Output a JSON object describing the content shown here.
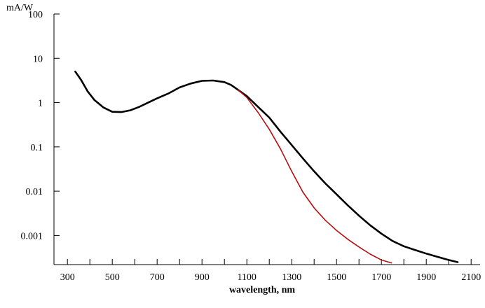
{
  "chart_data": {
    "type": "line",
    "title": "",
    "ylabel": "mA/W",
    "xlabel": "wavelength, nm",
    "y_scale": "log",
    "grid": false,
    "legend": "none",
    "xlim": [
      240,
      2140
    ],
    "ylim": [
      0.00022,
      100
    ],
    "x_ticks": [
      300,
      500,
      700,
      900,
      1100,
      1300,
      1500,
      1700,
      1900,
      2100
    ],
    "x_tick_labels": [
      "300",
      "500",
      "700",
      "900",
      "1100",
      "1300",
      "1500",
      "1700",
      "1900",
      "2100"
    ],
    "y_ticks": [
      100,
      10,
      1,
      0.1,
      0.01,
      0.001
    ],
    "y_tick_labels": [
      "100",
      "10",
      "1",
      "0.1",
      "0.01",
      "0.001"
    ],
    "series": [
      {
        "color": "#000000",
        "x": [
          335,
          360,
          390,
          420,
          460,
          500,
          540,
          580,
          620,
          660,
          700,
          750,
          800,
          850,
          900,
          950,
          1000,
          1030,
          1060,
          1100,
          1150,
          1200,
          1250,
          1300,
          1350,
          1400,
          1450,
          1500,
          1550,
          1600,
          1650,
          1700,
          1750,
          1800,
          1850,
          1900,
          1950,
          2000,
          2040
        ],
        "y": [
          5.0,
          3.3,
          1.8,
          1.15,
          0.78,
          0.62,
          0.61,
          0.67,
          0.8,
          1.0,
          1.25,
          1.6,
          2.2,
          2.7,
          3.1,
          3.15,
          2.9,
          2.5,
          1.95,
          1.4,
          0.8,
          0.46,
          0.22,
          0.11,
          0.055,
          0.028,
          0.015,
          0.0085,
          0.0048,
          0.0028,
          0.0017,
          0.0011,
          0.00075,
          0.00057,
          0.00047,
          0.00039,
          0.00033,
          0.00028,
          0.00025
        ]
      },
      {
        "color": "#b01010",
        "x": [
          1060,
          1100,
          1150,
          1200,
          1250,
          1300,
          1350,
          1400,
          1450,
          1500,
          1550,
          1600,
          1650,
          1700,
          1745
        ],
        "y": [
          1.95,
          1.3,
          0.6,
          0.25,
          0.09,
          0.028,
          0.0095,
          0.0042,
          0.0022,
          0.0013,
          0.00082,
          0.00055,
          0.00038,
          0.00028,
          0.00024
        ]
      }
    ]
  }
}
